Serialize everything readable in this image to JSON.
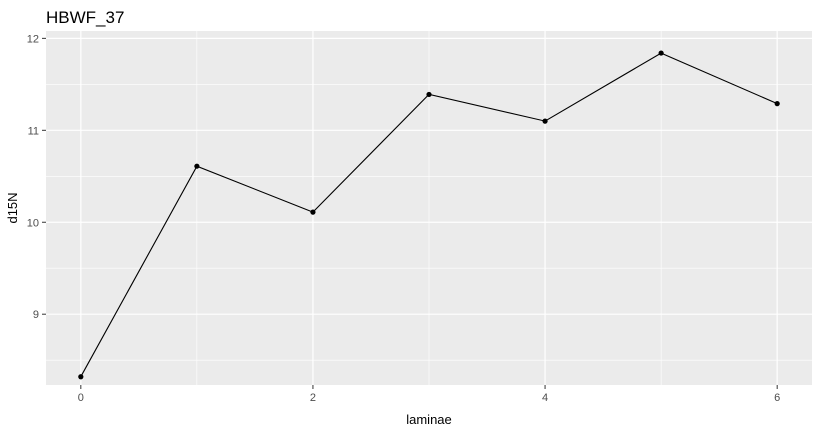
{
  "chart_data": {
    "type": "line",
    "title": "HBWF_37",
    "xlabel": "laminae",
    "ylabel": "d15N",
    "x": [
      0,
      1,
      2,
      3,
      4,
      5,
      6
    ],
    "series": [
      {
        "values": [
          8.32,
          10.61,
          10.11,
          11.39,
          11.1,
          11.84,
          11.29
        ]
      }
    ],
    "xlim": [
      -0.3,
      6.3
    ],
    "ylim": [
      8.23,
      12.08
    ],
    "x_ticks": [
      0,
      2,
      4,
      6
    ],
    "x_minor_ticks": [
      1,
      3,
      5
    ],
    "y_ticks": [
      9,
      10,
      11,
      12
    ],
    "y_minor_ticks": [
      8.5,
      9.5,
      10.5,
      11.5
    ],
    "grid": true,
    "legend": "none",
    "colors": {
      "panel_background": "#ebebeb",
      "grid": "#ffffff",
      "line": "#000000",
      "point": "#000000",
      "tick_text": "#4d4d4d",
      "tick_mark": "#333333"
    }
  }
}
